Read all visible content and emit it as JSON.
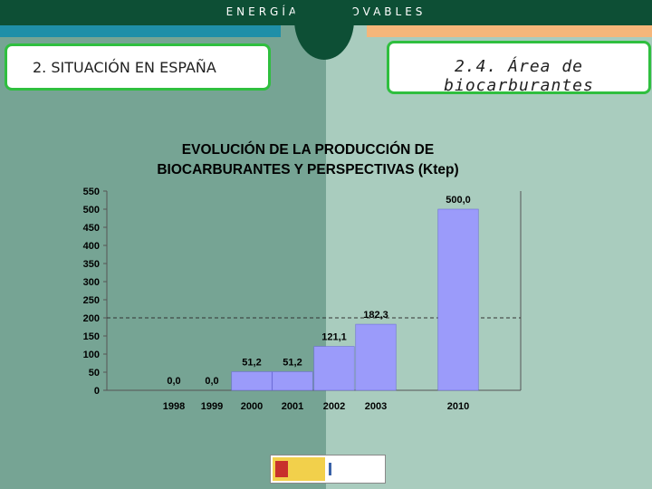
{
  "header": {
    "title": "ENERGÍAS RENOVABLES"
  },
  "labels": {
    "section": "2. SITUACIÓN EN ESPAÑA",
    "subsection": "2.4. Área de biocarburantes"
  },
  "colors": {
    "bar": "#9b9bfa",
    "header": "#0d4f35",
    "accent_blue": "#1f8fa8",
    "accent_orange": "#f5b67a",
    "box_border": "#2fbf3f"
  },
  "chart_data": {
    "type": "bar",
    "title_line1": "EVOLUCIÓN DE LA PRODUCCIÓN DE",
    "title_line2": "BIOCARBURANTES Y PERSPECTIVAS (Ktep)",
    "categories": [
      "1998",
      "1999",
      "2000",
      "2001",
      "2002",
      "2003",
      "2010"
    ],
    "values": [
      0.0,
      0.0,
      51.2,
      51.2,
      121.1,
      182.3,
      500.0
    ],
    "value_labels": [
      "0,0",
      "0,0",
      "51,2",
      "51,2",
      "121,1",
      "182,3",
      "500,0"
    ],
    "y_ticks": [
      0,
      50,
      100,
      150,
      200,
      250,
      300,
      350,
      400,
      450,
      500,
      550
    ],
    "ylim": [
      0,
      550
    ],
    "reference_line": 200,
    "xlabel": "",
    "ylabel": ""
  },
  "logos": {
    "ministry": "logo-ministerio",
    "idae": "logo-idae"
  }
}
